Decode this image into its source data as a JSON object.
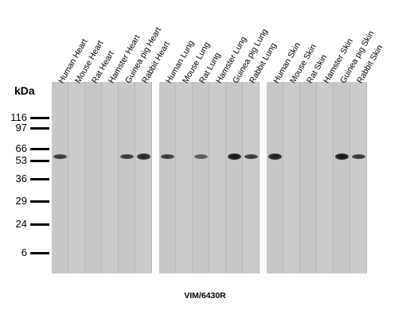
{
  "unit_label": "kDa",
  "antibody_caption": "VIM/6430R",
  "markers": [
    {
      "label": "116",
      "kda": 116
    },
    {
      "label": "97",
      "kda": 97
    },
    {
      "label": "66",
      "kda": 66
    },
    {
      "label": "53",
      "kda": 53
    },
    {
      "label": "36",
      "kda": 36
    },
    {
      "label": "29",
      "kda": 29
    },
    {
      "label": "24",
      "kda": 24
    },
    {
      "label": "6",
      "kda": 6
    }
  ],
  "panels": [
    {
      "name": "heart",
      "lanes": [
        {
          "label": "Human Heart",
          "band_intensity": 0.7
        },
        {
          "label": "Mouse Heart",
          "band_intensity": 0
        },
        {
          "label": "Rat Heart",
          "band_intensity": 0
        },
        {
          "label": "Hamster Heart",
          "band_intensity": 0
        },
        {
          "label": "Guinea pig Heart",
          "band_intensity": 0.7
        },
        {
          "label": "Rabbit Heart",
          "band_intensity": 0.85
        }
      ]
    },
    {
      "name": "lung",
      "lanes": [
        {
          "label": "Human Lung",
          "band_intensity": 0.7
        },
        {
          "label": "Mouse Lung",
          "band_intensity": 0
        },
        {
          "label": "Rat Lung",
          "band_intensity": 0.45
        },
        {
          "label": "Hamster Lung",
          "band_intensity": 0
        },
        {
          "label": "Guinea pig Lung",
          "band_intensity": 1
        },
        {
          "label": "Rabbit Lung",
          "band_intensity": 0.7
        }
      ]
    },
    {
      "name": "skin",
      "lanes": [
        {
          "label": "Human Skin",
          "band_intensity": 0.9
        },
        {
          "label": "Mouse Skin",
          "band_intensity": 0
        },
        {
          "label": "Rat Skin",
          "band_intensity": 0
        },
        {
          "label": "Hamster Skin",
          "band_intensity": 0
        },
        {
          "label": "Guinea pig Skin",
          "band_intensity": 1
        },
        {
          "label": "Rabbit Skin",
          "band_intensity": 0.7
        }
      ]
    }
  ],
  "band_kda": 57
}
